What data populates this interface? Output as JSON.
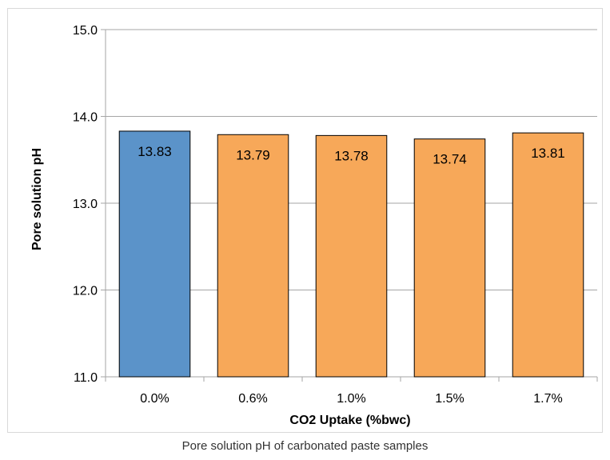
{
  "caption": "Pore solution pH of carbonated paste samples",
  "chart_data": {
    "type": "bar",
    "title": "",
    "xlabel": "CO2 Uptake (%bwc)",
    "ylabel": "Pore solution pH",
    "categories": [
      "0.0%",
      "0.6%",
      "1.0%",
      "1.5%",
      "1.7%"
    ],
    "values": [
      13.83,
      13.79,
      13.78,
      13.74,
      13.81
    ],
    "data_labels": [
      "13.83",
      "13.79",
      "13.78",
      "13.74",
      "13.81"
    ],
    "ylim": [
      11.0,
      15.0
    ],
    "yticks": [
      "11.0",
      "12.0",
      "13.0",
      "14.0",
      "15.0"
    ],
    "grid": true,
    "legend": "none",
    "colors": [
      "#5b93c9",
      "#f7a859",
      "#f7a859",
      "#f7a859",
      "#f7a859"
    ],
    "bar_edge_color": "#000000",
    "grid_color": "#a6a6a6"
  }
}
